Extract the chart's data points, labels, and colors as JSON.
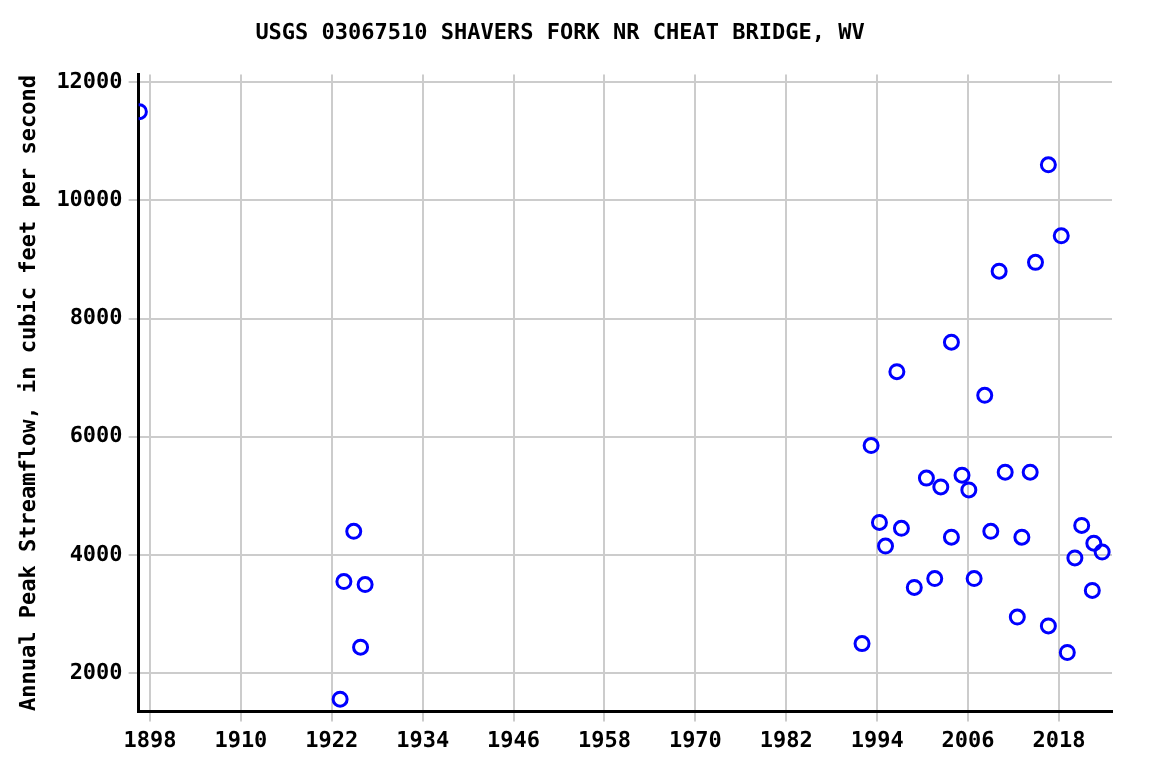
{
  "chart_data": {
    "type": "scatter",
    "title": "USGS 03067510 SHAVERS FORK NR CHEAT BRIDGE, WV",
    "ylabel": "Annual Peak Streamflow, in cubic feet per second",
    "x": [
      1896.6,
      1923.1,
      1923.6,
      1924.9,
      1925.8,
      1926.4,
      1992.0,
      1993.2,
      1994.3,
      1995.1,
      1996.6,
      1997.2,
      1998.9,
      2000.5,
      2001.6,
      2002.4,
      2003.8,
      2003.8,
      2005.2,
      2006.1,
      2006.8,
      2008.2,
      2009.0,
      2010.1,
      2010.9,
      2012.5,
      2013.1,
      2014.2,
      2014.9,
      2016.6,
      2016.6,
      2018.3,
      2019.1,
      2020.1,
      2021.0,
      2022.4,
      2022.6,
      2023.7
    ],
    "series": [
      {
        "color": "#0000ff",
        "values": [
          11500,
          1560,
          3550,
          4400,
          2440,
          3500,
          2500,
          5850,
          4550,
          4150,
          7100,
          4450,
          3450,
          5300,
          3600,
          5150,
          7600,
          4300,
          5350,
          5100,
          3600,
          6700,
          4400,
          8800,
          5400,
          2950,
          4300,
          5400,
          8950,
          10600,
          2800,
          9400,
          2350,
          3950,
          4500,
          3400,
          4200,
          4050
        ]
      }
    ],
    "xlim": [
      1896.5,
      2025
    ],
    "xticks": [
      1898,
      1910,
      1922,
      1934,
      1946,
      1958,
      1970,
      1982,
      1994,
      2006,
      2018
    ],
    "ylim": [
      1350,
      12130
    ],
    "yticks": [
      2000,
      4000,
      6000,
      8000,
      10000,
      12000
    ],
    "grid": true,
    "legend": false,
    "marker": "circle"
  }
}
